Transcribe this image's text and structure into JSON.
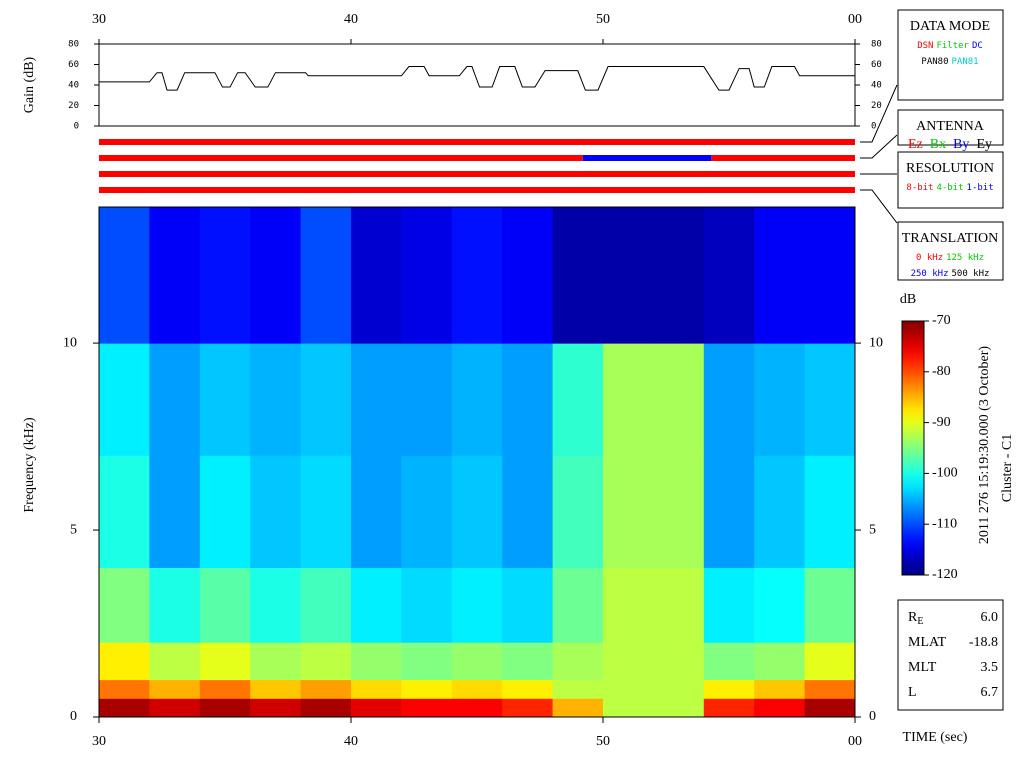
{
  "chart_data": [
    {
      "type": "line",
      "ylabel": "Gain (dB)",
      "x": [
        30.0,
        32.0,
        32.3,
        32.5,
        32.7,
        33.1,
        33.4,
        34.6,
        34.9,
        35.2,
        35.5,
        35.8,
        36.2,
        36.7,
        37.0,
        38.2,
        38.3,
        42.0,
        42.3,
        42.9,
        43.1,
        44.3,
        44.6,
        44.8,
        45.1,
        45.6,
        45.9,
        46.5,
        46.8,
        47.3,
        47.7,
        49.0,
        49.3,
        49.8,
        50.2,
        54.0,
        54.6,
        55.0,
        55.4,
        55.8,
        56.0,
        56.4,
        56.7,
        57.6,
        57.8,
        60.0
      ],
      "values": [
        43,
        43,
        52,
        52,
        35,
        35,
        52,
        52,
        38,
        38,
        52,
        52,
        38,
        38,
        52,
        52,
        49,
        49,
        58,
        58,
        49,
        49,
        58,
        58,
        38,
        38,
        58,
        58,
        38,
        38,
        54,
        54,
        35,
        35,
        58,
        58,
        35,
        35,
        56,
        56,
        38,
        38,
        58,
        58,
        49,
        49
      ],
      "color": "#000000",
      "xlim": [
        30,
        60
      ],
      "xticks": [
        30,
        40,
        50,
        {
          "value": 60,
          "label": "00"
        }
      ],
      "ylim": [
        0,
        80
      ],
      "yticks": [
        0,
        20,
        40,
        60,
        80
      ]
    },
    {
      "type": "timeline",
      "xlim": [
        30,
        60
      ],
      "rows": [
        {
          "segments": [
            {
              "start": 30,
              "end": 60,
              "color": "#ff0000"
            }
          ]
        },
        {
          "segments": [
            {
              "start": 30,
              "end": 49.2,
              "color": "#ff0000"
            },
            {
              "start": 49.2,
              "end": 54.3,
              "color": "#0000ff"
            },
            {
              "start": 54.3,
              "end": 60,
              "color": "#ff0000"
            }
          ]
        },
        {
          "segments": [
            {
              "start": 30,
              "end": 60,
              "color": "#ff0000"
            }
          ]
        },
        {
          "segments": [
            {
              "start": 30,
              "end": 60,
              "color": "#ff0000"
            }
          ]
        }
      ]
    },
    {
      "type": "heatmap",
      "ylabel": "Frequency (kHz)",
      "xlabel": "TIME (sec)",
      "colorbar_label": "dB",
      "xlim": [
        30,
        60
      ],
      "xticks": [
        30,
        40,
        50,
        {
          "value": 60,
          "label": "00"
        }
      ],
      "ylim": [
        0,
        13.64
      ],
      "yticks": [
        0,
        5,
        10
      ],
      "clim": [
        -120,
        -70
      ],
      "cticks": [
        -120,
        -110,
        -100,
        -90,
        -80,
        -70
      ],
      "x_edges": [
        30,
        32,
        34,
        36,
        38,
        40,
        42,
        44,
        46,
        48,
        50,
        52,
        54,
        56,
        58,
        60
      ],
      "y_edges": [
        0,
        0.5,
        1,
        2,
        4,
        7,
        10,
        13.64
      ],
      "values": [
        [
          -72,
          -74,
          -72,
          -74,
          -72,
          -75,
          -76,
          -76,
          -78,
          -85,
          -92,
          -92,
          -78,
          -76,
          -72
        ],
        [
          -82,
          -85,
          -82,
          -86,
          -84,
          -87,
          -88,
          -87,
          -88,
          -92,
          -92,
          -92,
          -88,
          -86,
          -82
        ],
        [
          -88,
          -92,
          -90,
          -93,
          -92,
          -94,
          -95,
          -94,
          -95,
          -93,
          -92,
          -92,
          -95,
          -94,
          -90
        ],
        [
          -95,
          -100,
          -97,
          -100,
          -98,
          -102,
          -103,
          -102,
          -103,
          -96,
          -92,
          -92,
          -102,
          -101,
          -96
        ],
        [
          -100,
          -106,
          -102,
          -104,
          -103,
          -106,
          -105,
          -104,
          -106,
          -98,
          -93,
          -93,
          -106,
          -104,
          -102
        ],
        [
          -102,
          -106,
          -104,
          -105,
          -104,
          -106,
          -106,
          -105,
          -106,
          -99,
          -93,
          -93,
          -106,
          -105,
          -104
        ],
        [
          -110,
          -114,
          -113,
          -114,
          -110,
          -116,
          -115,
          -113,
          -114,
          -118,
          -118,
          -118,
          -117,
          -114,
          -114
        ]
      ]
    }
  ],
  "side_boxes": [
    {
      "title": "DATA MODE",
      "items": [
        [
          {
            "text": "DSN",
            "color": "#ff0000"
          },
          {
            "text": "Filter",
            "color": "#00cc00"
          },
          {
            "text": "DC",
            "color": "#0000ff"
          }
        ],
        [
          {
            "text": "PAN80",
            "color": "#000000"
          },
          {
            "text": "PAN81",
            "color": "#00cccc"
          }
        ]
      ]
    },
    {
      "title": "ANTENNA",
      "items": [
        [
          {
            "text": "Ez",
            "color": "#ff0000"
          },
          {
            "text": "Bx",
            "color": "#00cc00"
          },
          {
            "text": "By",
            "color": "#0000ff"
          },
          {
            "text": "Ey",
            "color": "#000000"
          }
        ]
      ]
    },
    {
      "title": "RESOLUTION",
      "items": [
        [
          {
            "text": "8-bit",
            "color": "#ff0000"
          },
          {
            "text": "4-bit",
            "color": "#00cc00"
          },
          {
            "text": "1-bit",
            "color": "#0000ff"
          }
        ]
      ]
    },
    {
      "title": "TRANSLATION",
      "items": [
        [
          {
            "text": "0 kHz",
            "color": "#ff0000"
          },
          {
            "text": "125 kHz",
            "color": "#00cc00"
          }
        ],
        [
          {
            "text": "250 kHz",
            "color": "#0000ff"
          },
          {
            "text": "500 kHz",
            "color": "#000000"
          }
        ]
      ]
    }
  ],
  "info": [
    {
      "label": "R",
      "sub": "E",
      "value": "6.0"
    },
    {
      "label": "MLAT",
      "value": "-18.8"
    },
    {
      "label": "MLT",
      "value": "3.5"
    },
    {
      "label": "L",
      "value": "6.7"
    }
  ],
  "date_text": "2011 276 15:19:30.000 (3 October)",
  "spacecraft": "Cluster - C1"
}
